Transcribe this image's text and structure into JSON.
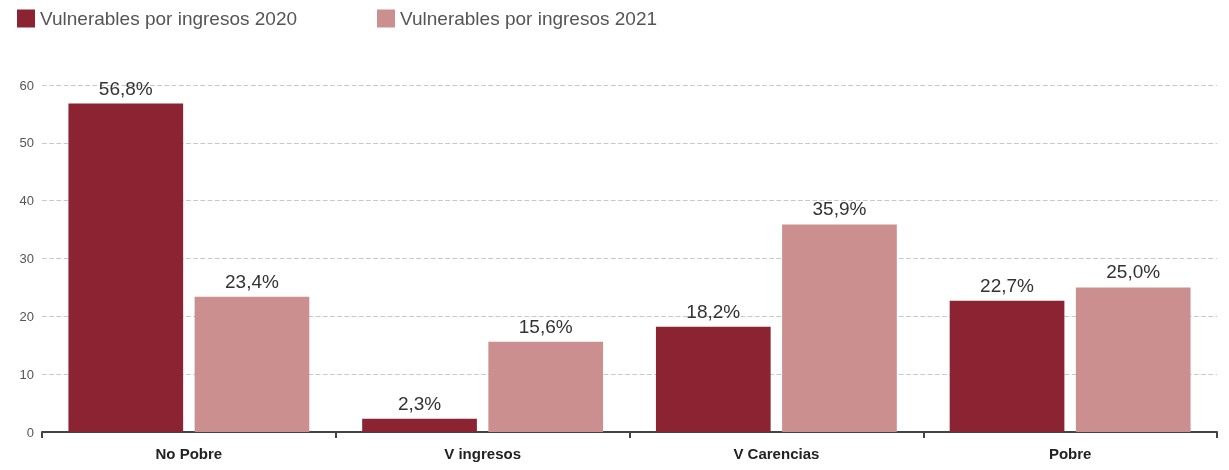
{
  "chart_data": {
    "type": "bar",
    "categories": [
      "No Pobre",
      "V ingresos",
      "V Carencias",
      "Pobre"
    ],
    "series": [
      {
        "name": "Vulnerables por ingresos 2020",
        "color": "#8b2332",
        "values": [
          56.8,
          2.3,
          18.2,
          22.7
        ],
        "value_labels": [
          "56,8%",
          "2,3%",
          "18,2%",
          "22,7%"
        ]
      },
      {
        "name": "Vulnerables por ingresos 2021",
        "color": "#cc8f8f",
        "values": [
          23.4,
          15.6,
          35.9,
          25.0
        ],
        "value_labels": [
          "23,4%",
          "15,6%",
          "35,9%",
          "25,0%"
        ]
      }
    ],
    "ylim": [
      0,
      60
    ],
    "yticks": [
      0,
      10,
      20,
      30,
      40,
      50,
      60
    ],
    "grid": "y",
    "legend": "top left"
  }
}
